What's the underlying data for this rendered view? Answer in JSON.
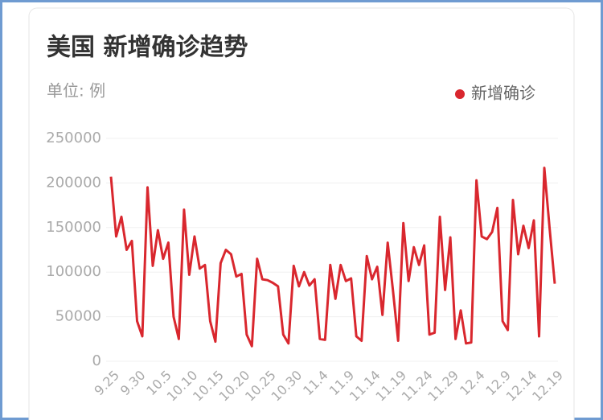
{
  "chart_data": {
    "type": "line",
    "title": "美国 新增确诊趋势",
    "subtitle": "单位: 例",
    "categories": [
      "9.25",
      null,
      null,
      null,
      null,
      "9.30",
      null,
      null,
      null,
      null,
      "10.5",
      null,
      null,
      null,
      null,
      "10.10",
      null,
      null,
      null,
      null,
      "10.15",
      null,
      null,
      null,
      null,
      "10.20",
      null,
      null,
      null,
      null,
      "10.25",
      null,
      null,
      null,
      null,
      "10.30",
      null,
      null,
      null,
      null,
      "11.4",
      null,
      null,
      null,
      null,
      "11.9",
      null,
      null,
      null,
      null,
      "11.14",
      null,
      null,
      null,
      null,
      "11.19",
      null,
      null,
      null,
      null,
      "11.24",
      null,
      null,
      null,
      null,
      "11.29",
      null,
      null,
      null,
      null,
      "12.4",
      null,
      null,
      null,
      null,
      "12.9",
      null,
      null,
      null,
      null,
      "12.14",
      null,
      null,
      null,
      null,
      "12.19"
    ],
    "series": [
      {
        "name": "新增确诊",
        "color": "#d9272e",
        "values": [
          207000,
          140000,
          162000,
          125000,
          135000,
          45000,
          28000,
          195000,
          107000,
          147000,
          115000,
          133000,
          50000,
          25000,
          170000,
          97000,
          140000,
          104000,
          108000,
          45000,
          22000,
          110000,
          125000,
          120000,
          95000,
          98000,
          30000,
          17000,
          115000,
          92000,
          91000,
          88000,
          84000,
          30000,
          20000,
          107000,
          84000,
          100000,
          85000,
          92000,
          25000,
          24000,
          108000,
          70000,
          108000,
          90000,
          93000,
          28000,
          23000,
          118000,
          92000,
          106000,
          52000,
          133000,
          80000,
          23000,
          155000,
          90000,
          128000,
          108000,
          130000,
          30000,
          32000,
          162000,
          80000,
          139000,
          25000,
          57000,
          20000,
          21000,
          203000,
          140000,
          137000,
          145000,
          172000,
          45000,
          35000,
          181000,
          120000,
          152000,
          127000,
          158000,
          28000,
          217000,
          150000,
          87000
        ]
      }
    ],
    "ylim": [
      0,
      250000
    ],
    "yticks": [
      0,
      50000,
      100000,
      150000,
      200000,
      250000
    ],
    "grid": true,
    "legend": "top-right"
  }
}
